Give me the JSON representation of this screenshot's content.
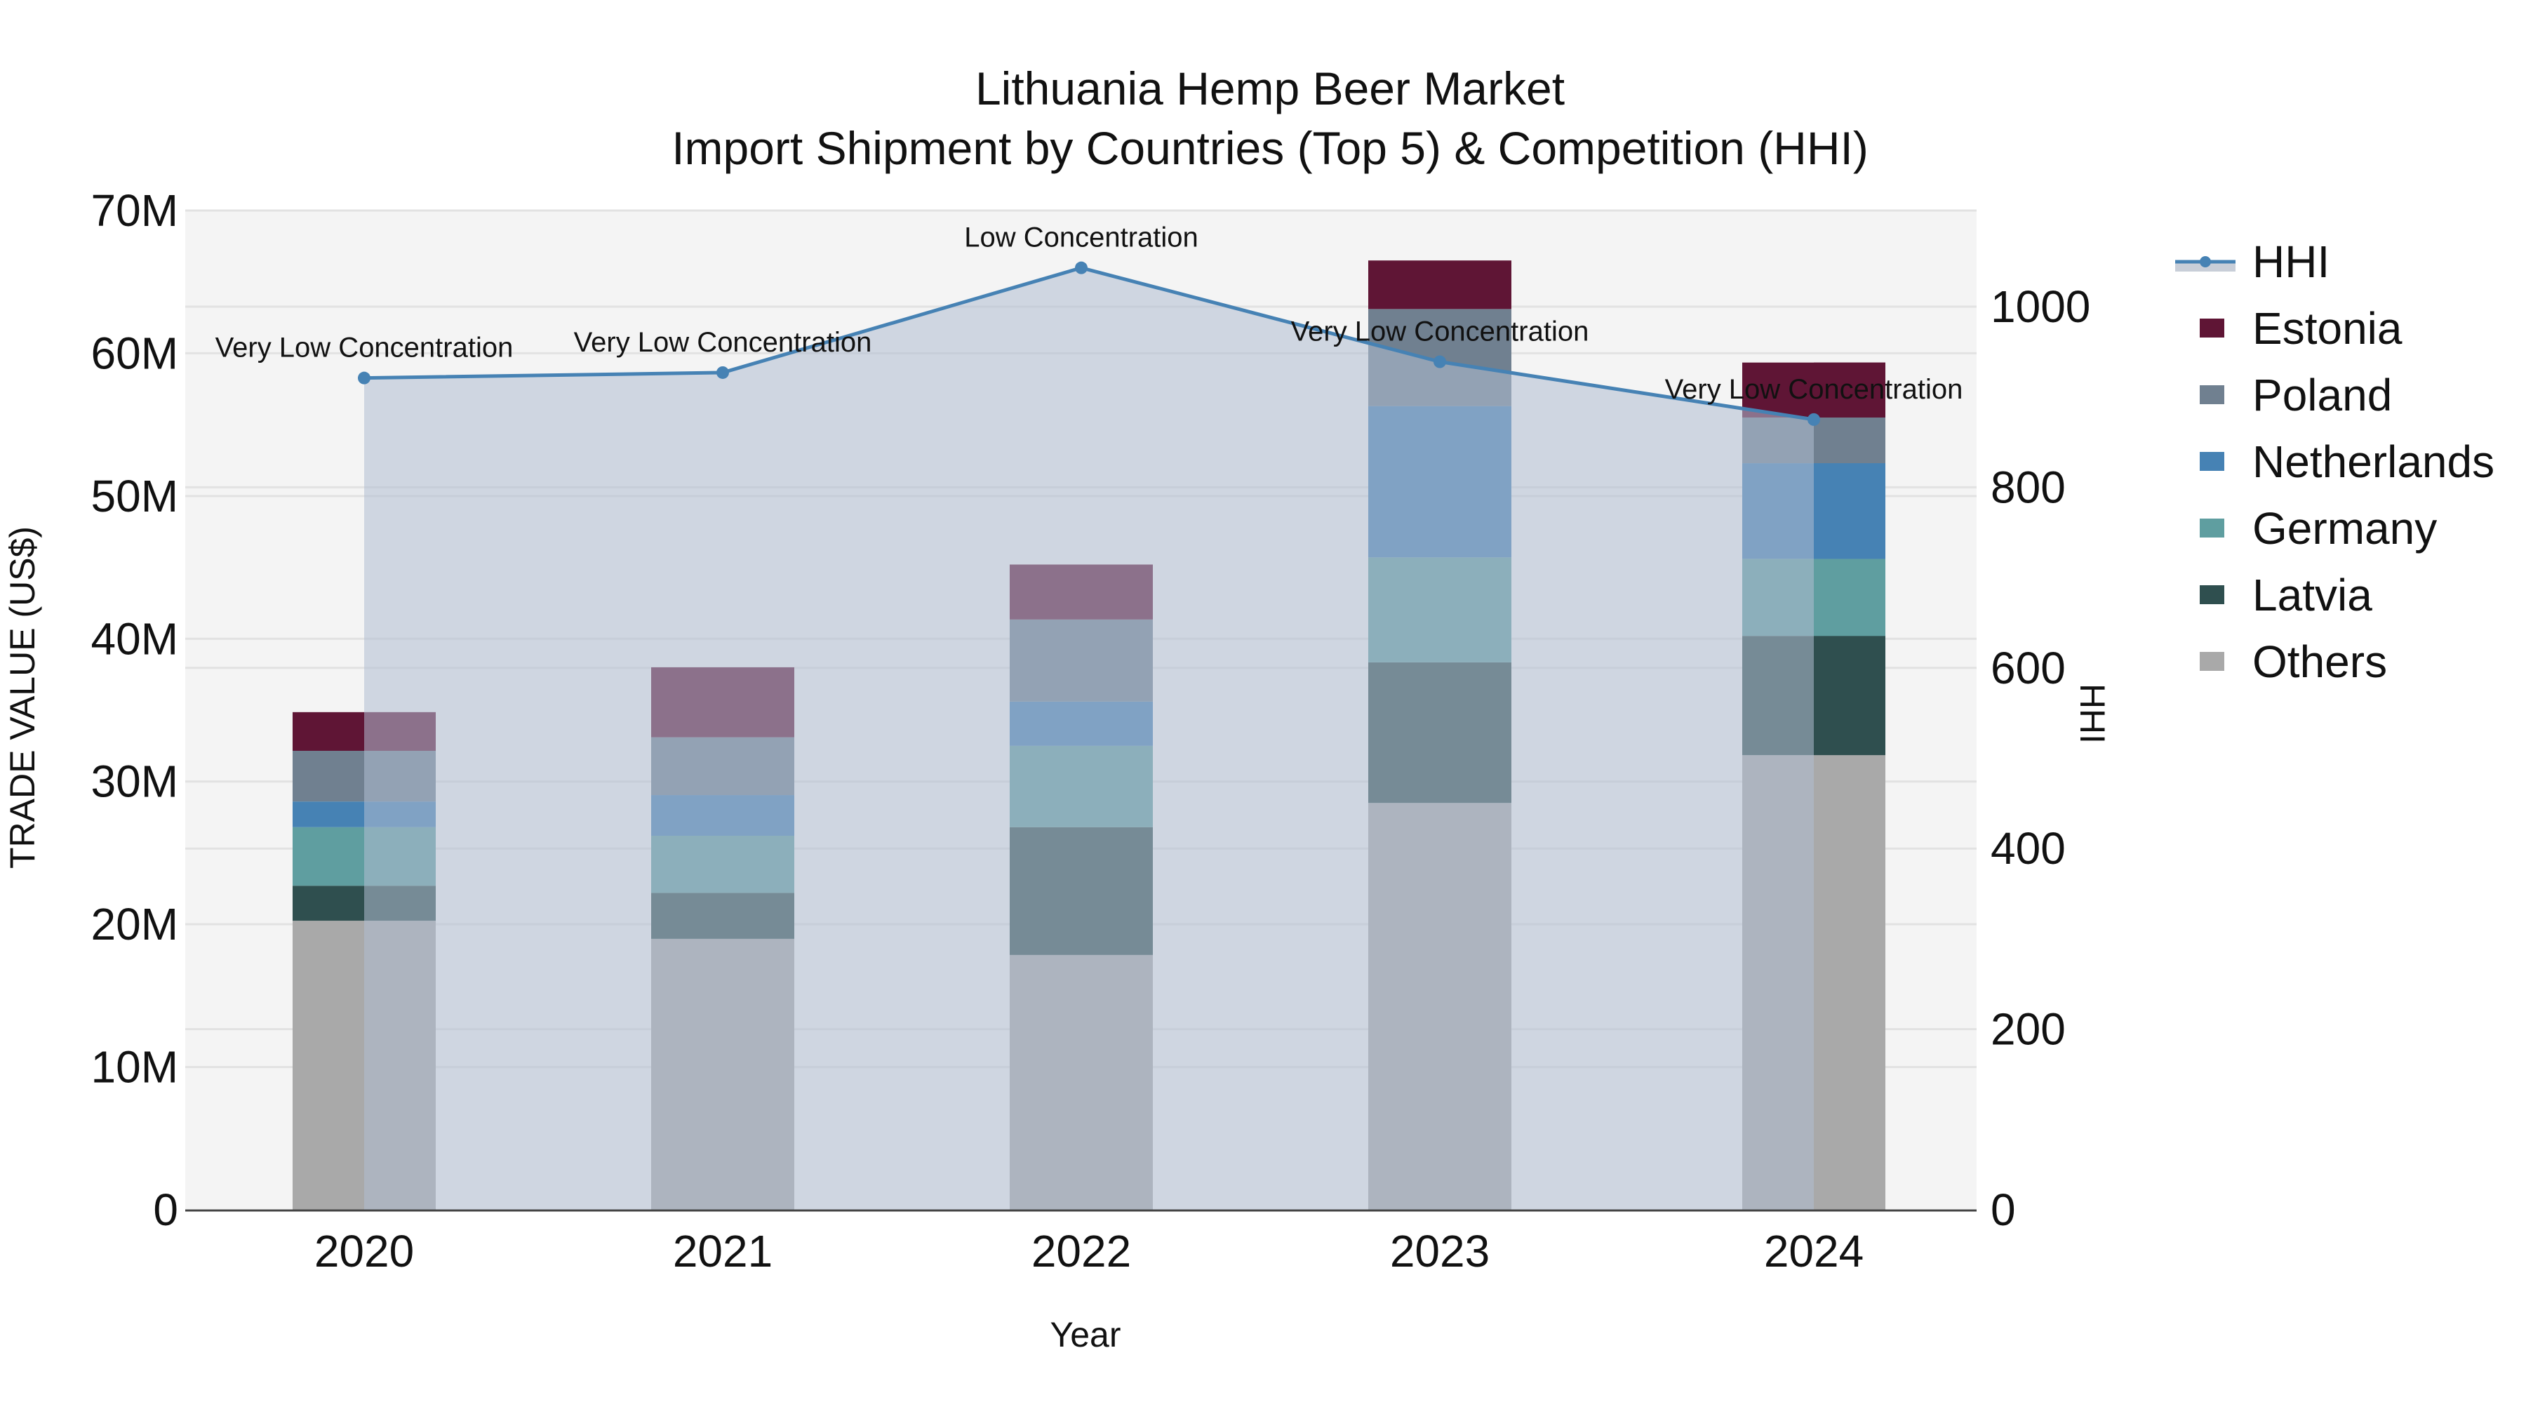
{
  "title": {
    "line1": "Lithuania Hemp Beer Market",
    "line2": "Import Shipment by Countries (Top 5) & Competition (HHI)"
  },
  "axes": {
    "xlabel": "Year",
    "ylabel_left": "TRADE VALUE (US$)",
    "ylabel_right": "HHI",
    "left_ticks": [
      "0",
      "10M",
      "20M",
      "30M",
      "40M",
      "50M",
      "60M",
      "70M"
    ],
    "right_ticks": [
      "0",
      "200",
      "400",
      "600",
      "800",
      "1000"
    ]
  },
  "legend": {
    "items": [
      {
        "label": "HHI",
        "type": "line",
        "color": "#4682B4"
      },
      {
        "label": "Estonia",
        "type": "box",
        "color": "#5F1535"
      },
      {
        "label": "Poland",
        "type": "box",
        "color": "#708090"
      },
      {
        "label": "Netherlands",
        "type": "box",
        "color": "#4682B4"
      },
      {
        "label": "Germany",
        "type": "box",
        "color": "#5F9EA0"
      },
      {
        "label": "Latvia",
        "type": "box",
        "color": "#2F4F4F"
      },
      {
        "label": "Others",
        "type": "box",
        "color": "#A9A9A9"
      }
    ]
  },
  "colors": {
    "plot_bg": "#F4F4F4",
    "grid": "#E2E2E2",
    "hhi_line": "#4682B4",
    "hhi_fill": "rgba(176,190,210,0.55)",
    "axis_line": "#444444"
  },
  "chart_data": {
    "type": "bar",
    "stacked": true,
    "title": "Lithuania Hemp Beer Market — Import Shipment by Countries (Top 5) & Competition (HHI)",
    "xlabel": "Year",
    "ylabel": "TRADE VALUE (US$)",
    "y2label": "HHI",
    "ylim": [
      0,
      70000000
    ],
    "y2lim": [
      0,
      1107
    ],
    "categories": [
      "2020",
      "2021",
      "2022",
      "2023",
      "2024"
    ],
    "series": [
      {
        "name": "Others",
        "color": "#A9A9A9",
        "values": [
          20250000,
          18980000,
          17850000,
          28500000,
          31850000
        ]
      },
      {
        "name": "Latvia",
        "color": "#2F4F4F",
        "values": [
          2450000,
          3220000,
          8950000,
          9850000,
          8350000
        ]
      },
      {
        "name": "Germany",
        "color": "#5F9EA0",
        "values": [
          4100000,
          4000000,
          5700000,
          7350000,
          5400000
        ]
      },
      {
        "name": "Netherlands",
        "color": "#4682B4",
        "values": [
          1800000,
          2850000,
          3100000,
          10600000,
          6700000
        ]
      },
      {
        "name": "Poland",
        "color": "#708090",
        "values": [
          3550000,
          4050000,
          5750000,
          6800000,
          3200000
        ]
      },
      {
        "name": "Estonia",
        "color": "#5F1535",
        "values": [
          2710000,
          4900000,
          3850000,
          3400000,
          3850000
        ]
      }
    ],
    "line_series": {
      "name": "HHI",
      "axis": "right",
      "color": "#4682B4",
      "fill": "tozeroy",
      "values": [
        921,
        927,
        1043,
        939,
        875
      ],
      "annotations": [
        "Very Low Concentration",
        "Very Low Concentration",
        "Low Concentration",
        "Very Low Concentration",
        "Very Low Concentration"
      ]
    },
    "grid": true,
    "legend_position": "right"
  }
}
